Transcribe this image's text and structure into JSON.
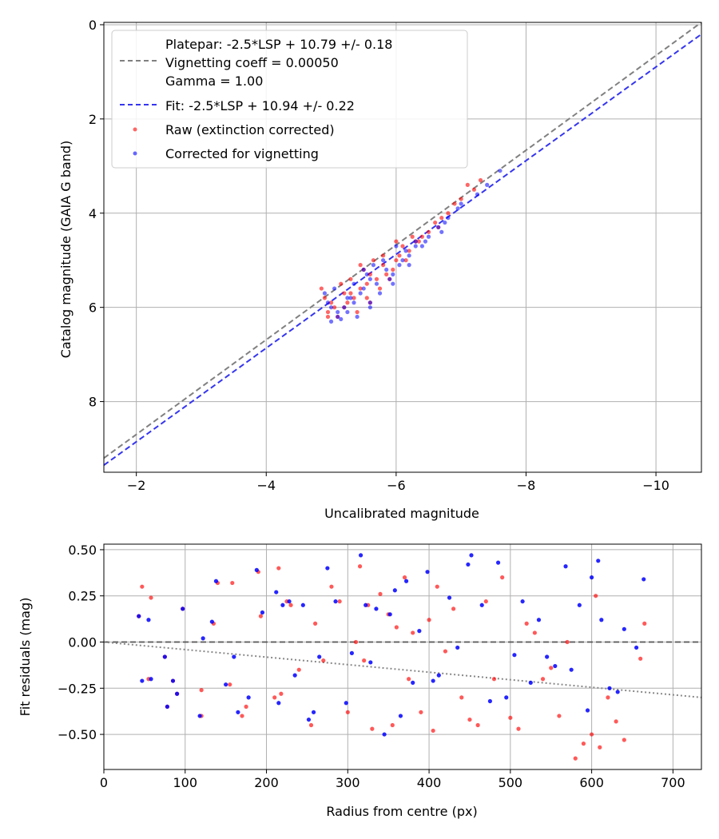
{
  "colors": {
    "raw": "#ff0000",
    "corrected": "#0000ff",
    "platepar_line": "#808080",
    "fit_line": "#3535f0",
    "zero_line": "#555555",
    "trend_line": "#888888",
    "grid": "#b0b0b0"
  },
  "chart_data": [
    {
      "id": "calibration",
      "type": "scatter",
      "title": "",
      "xlabel": "Uncalibrated magnitude",
      "ylabel": "Catalog magnitude (GAIA G band)",
      "xlim": [
        -1.5,
        -10.7
      ],
      "ylim": [
        9.5,
        -0.05
      ],
      "x_inverted": true,
      "y_inverted": true,
      "xticks": [
        -2,
        -4,
        -6,
        -8,
        -10
      ],
      "xtick_labels": [
        "−2",
        "−4",
        "−6",
        "−8",
        "−10"
      ],
      "yticks": [
        0,
        2,
        4,
        6,
        8
      ],
      "ytick_labels": [
        "0",
        "2",
        "4",
        "6",
        "8"
      ],
      "grid": true,
      "legend_position": "top-left",
      "legend": {
        "platepar_line1": "Platepar: -2.5*LSP + 10.79 +/- 0.18",
        "platepar_line2": "Vignetting coeff = 0.00050",
        "platepar_line3": "Gamma = 1.00",
        "fit": "Fit: -2.5*LSP + 10.94 +/- 0.22",
        "raw": "Raw (extinction corrected)",
        "corrected": "Corrected for vignetting"
      },
      "lines": [
        {
          "name": "platepar",
          "style": "dashed",
          "x": [
            -1.5,
            -10.7
          ],
          "y": [
            9.2,
            -0.05
          ]
        },
        {
          "name": "fit",
          "style": "dashed",
          "x": [
            -1.5,
            -10.7
          ],
          "y": [
            9.35,
            0.2
          ]
        }
      ],
      "series": [
        {
          "name": "Raw (extinction corrected)",
          "x": [
            -5.0,
            -4.95,
            -5.3,
            -5.2,
            -5.6,
            -5.55,
            -5.8,
            -6.0,
            -6.2,
            -5.95,
            -6.05,
            -6.5,
            -6.6,
            -6.7,
            -6.9,
            -7.0,
            -7.2,
            -6.8,
            -5.45,
            -5.35,
            -5.1,
            -4.85,
            -5.7,
            -5.85,
            -5.65,
            -6.1,
            -6.3,
            -6.4,
            -5.25,
            -5.15,
            -4.9,
            -5.5,
            -5.75,
            -6.15,
            -5.4,
            -5.05,
            -6.0,
            -5.9,
            -6.25,
            -7.3,
            -7.1,
            -6.65,
            -5.6,
            -5.3,
            -5.2,
            -4.95,
            -5.45,
            -5.55,
            -5.8,
            -6.35
          ],
          "y": [
            5.9,
            6.1,
            5.7,
            6.0,
            5.3,
            5.5,
            5.1,
            5.0,
            4.8,
            5.2,
            4.9,
            4.4,
            4.2,
            4.1,
            3.8,
            3.7,
            3.5,
            4.0,
            5.6,
            5.8,
            6.2,
            5.6,
            5.4,
            5.3,
            5.0,
            4.7,
            4.6,
            4.5,
            5.9,
            5.5,
            5.8,
            5.2,
            5.6,
            5.0,
            6.1,
            6.0,
            4.6,
            5.4,
            4.5,
            3.3,
            3.4,
            4.3,
            5.9,
            5.4,
            5.7,
            6.2,
            5.1,
            5.8,
            4.9,
            4.6
          ]
        },
        {
          "name": "Corrected for vignetting",
          "x": [
            -5.0,
            -5.1,
            -5.3,
            -5.25,
            -5.6,
            -5.5,
            -5.85,
            -6.05,
            -6.2,
            -5.95,
            -6.1,
            -6.5,
            -6.65,
            -6.75,
            -6.95,
            -7.0,
            -7.25,
            -6.8,
            -5.45,
            -5.35,
            -5.15,
            -4.9,
            -5.7,
            -5.9,
            -5.65,
            -6.15,
            -6.3,
            -6.45,
            -5.2,
            -5.05,
            -4.95,
            -5.55,
            -5.75,
            -6.2,
            -5.4,
            -5.1,
            -6.0,
            -5.95,
            -6.3,
            -7.4,
            -7.6,
            -6.7,
            -5.6,
            -5.35,
            -5.25,
            -5.0,
            -5.5,
            -5.6,
            -5.8,
            -6.4
          ],
          "y": [
            6.0,
            6.2,
            5.8,
            6.1,
            5.4,
            5.6,
            5.2,
            5.1,
            4.9,
            5.3,
            5.0,
            4.5,
            4.3,
            4.2,
            3.9,
            3.8,
            3.6,
            4.1,
            5.7,
            5.9,
            6.25,
            5.7,
            5.5,
            5.4,
            5.1,
            4.8,
            4.7,
            4.6,
            6.0,
            5.6,
            5.9,
            5.3,
            5.7,
            5.1,
            6.2,
            6.1,
            4.7,
            5.5,
            4.6,
            3.4,
            3.1,
            4.4,
            6.0,
            5.5,
            5.8,
            6.3,
            5.2,
            5.9,
            5.0,
            4.7
          ]
        }
      ]
    },
    {
      "id": "residuals",
      "type": "scatter",
      "title": "",
      "xlabel": "Radius from centre (px)",
      "ylabel": "Fit residuals (mag)",
      "xlim": [
        0,
        735
      ],
      "ylim": [
        -0.69,
        0.53
      ],
      "xticks": [
        0,
        100,
        200,
        300,
        400,
        500,
        600,
        700
      ],
      "xtick_labels": [
        "0",
        "100",
        "200",
        "300",
        "400",
        "500",
        "600",
        "700"
      ],
      "yticks": [
        -0.5,
        -0.25,
        0.0,
        0.25,
        0.5
      ],
      "ytick_labels": [
        "−0.50",
        "−0.25",
        "0.00",
        "0.25",
        "0.50"
      ],
      "grid": true,
      "lines": [
        {
          "name": "zero",
          "style": "dashed",
          "x": [
            0,
            735
          ],
          "y": [
            0,
            0
          ]
        },
        {
          "name": "vignetting trend",
          "style": "dotted",
          "x": [
            0,
            735
          ],
          "y": [
            0.0,
            -0.3
          ]
        }
      ],
      "series": [
        {
          "name": "Raw (extinction corrected)",
          "x": [
            43,
            47,
            55,
            58,
            75,
            78,
            85,
            90,
            97,
            120,
            120,
            135,
            140,
            155,
            158,
            170,
            175,
            190,
            193,
            210,
            215,
            218,
            225,
            230,
            240,
            255,
            260,
            270,
            280,
            290,
            300,
            310,
            315,
            320,
            325,
            330,
            340,
            350,
            355,
            360,
            370,
            375,
            380,
            390,
            400,
            405,
            410,
            420,
            430,
            440,
            450,
            460,
            470,
            480,
            490,
            500,
            510,
            520,
            530,
            540,
            550,
            560,
            570,
            580,
            590,
            600,
            605,
            610,
            620,
            630,
            640,
            660,
            665
          ],
          "x_": null,
          "y": [
            0.14,
            0.3,
            -0.2,
            0.24,
            -0.08,
            -0.35,
            -0.21,
            -0.28,
            0.18,
            -0.4,
            -0.26,
            0.1,
            0.32,
            -0.23,
            0.32,
            -0.4,
            -0.35,
            0.38,
            0.14,
            -0.3,
            0.4,
            -0.28,
            0.22,
            0.2,
            -0.15,
            -0.45,
            0.1,
            -0.1,
            0.3,
            0.22,
            -0.38,
            0.0,
            0.41,
            -0.1,
            0.2,
            -0.47,
            0.26,
            0.15,
            -0.45,
            0.08,
            0.35,
            -0.2,
            0.05,
            -0.38,
            0.12,
            -0.48,
            0.3,
            -0.05,
            0.18,
            -0.3,
            -0.42,
            -0.45,
            0.22,
            -0.2,
            0.35,
            -0.41,
            -0.47,
            0.1,
            0.05,
            -0.2,
            -0.14,
            -0.4,
            0.0,
            -0.63,
            -0.55,
            -0.5,
            0.25,
            -0.57,
            -0.3,
            -0.43,
            -0.53,
            -0.09,
            0.1
          ]
        },
        {
          "name": "Corrected for vignetting",
          "x": [
            43,
            47,
            55,
            58,
            75,
            78,
            85,
            90,
            97,
            118,
            122,
            133,
            138,
            150,
            160,
            165,
            178,
            188,
            195,
            212,
            215,
            220,
            228,
            235,
            245,
            252,
            258,
            265,
            275,
            285,
            298,
            305,
            316,
            322,
            328,
            335,
            345,
            352,
            358,
            365,
            372,
            380,
            388,
            398,
            405,
            412,
            425,
            435,
            448,
            452,
            465,
            475,
            485,
            495,
            505,
            515,
            525,
            535,
            545,
            555,
            568,
            575,
            585,
            595,
            600,
            608,
            612,
            622,
            632,
            640,
            655,
            664
          ],
          "y": [
            0.14,
            -0.21,
            0.12,
            -0.2,
            -0.08,
            -0.35,
            -0.21,
            -0.28,
            0.18,
            -0.4,
            0.02,
            0.11,
            0.33,
            -0.23,
            -0.08,
            -0.38,
            -0.3,
            0.39,
            0.16,
            0.27,
            -0.33,
            0.2,
            0.22,
            -0.18,
            0.2,
            -0.42,
            -0.38,
            -0.08,
            0.4,
            0.22,
            -0.33,
            -0.06,
            0.47,
            0.2,
            -0.11,
            0.18,
            -0.5,
            0.15,
            0.28,
            -0.4,
            0.33,
            -0.22,
            0.06,
            0.38,
            -0.21,
            -0.18,
            0.24,
            -0.03,
            0.42,
            0.47,
            0.2,
            -0.32,
            0.43,
            -0.3,
            -0.07,
            0.22,
            -0.22,
            0.12,
            -0.08,
            -0.13,
            0.41,
            -0.15,
            0.2,
            -0.37,
            0.35,
            0.44,
            0.12,
            -0.25,
            -0.27,
            0.07,
            -0.03,
            0.34
          ]
        }
      ]
    }
  ]
}
